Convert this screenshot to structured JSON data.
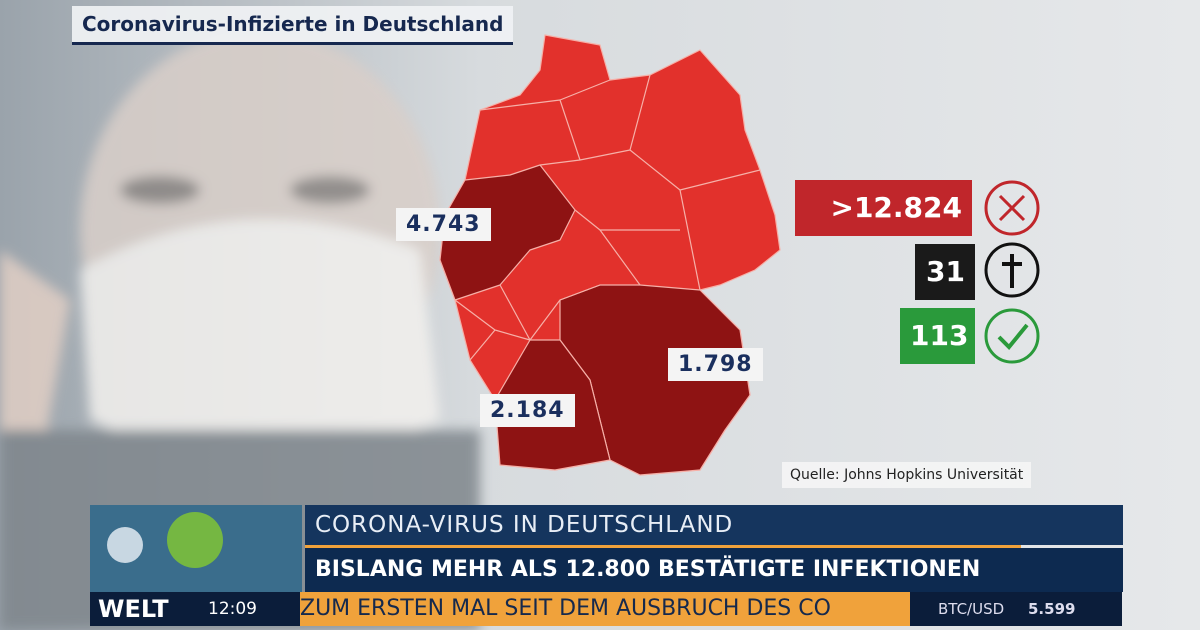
{
  "title": "Coronavirus-Infizierte in Deutschland",
  "map_labels": [
    "4.743",
    "2.184",
    "1.798"
  ],
  "stats": {
    "infected": ">12.824",
    "deaths": "31",
    "recovered": "113"
  },
  "source": "Quelle: Johns Hopkins Universität",
  "ticker": {
    "topic": "CORONA-VIRUS IN DEUTSCHLAND",
    "headline": "BISLANG MEHR ALS 12.800 BESTÄTIGTE INFEKTIONEN",
    "crawl": "ZUM ERSTEN MAL SEIT DEM AUSBRUCH DES CO",
    "logo": "WELT",
    "time": "12:09",
    "market_label": "BTC/USD",
    "market_value": "5.599"
  }
}
